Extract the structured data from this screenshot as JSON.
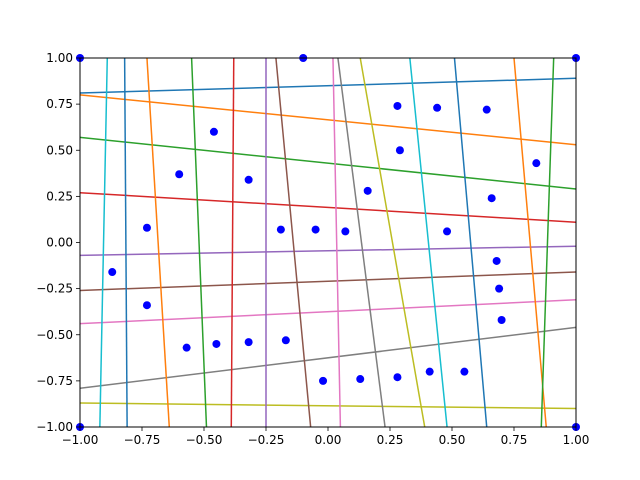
{
  "chart_data": {
    "type": "line",
    "title": "",
    "xlabel": "",
    "ylabel": "",
    "xlim": [
      -1.0,
      1.0
    ],
    "ylim": [
      -1.0,
      1.0
    ],
    "grid": false,
    "legend": "none",
    "x_ticks": [
      -1.0,
      -0.75,
      -0.5,
      -0.25,
      0.0,
      0.25,
      0.5,
      0.75,
      1.0
    ],
    "x_tick_labels": [
      "−1.00",
      "−0.75",
      "−0.50",
      "−0.25",
      "0.00",
      "0.25",
      "0.50",
      "0.75",
      "1.00"
    ],
    "y_ticks": [
      -1.0,
      -0.75,
      -0.5,
      -0.25,
      0.0,
      0.25,
      0.5,
      0.75,
      1.0
    ],
    "y_tick_labels": [
      "−1.00",
      "−0.75",
      "−0.50",
      "−0.25",
      "0.00",
      "0.25",
      "0.50",
      "0.75",
      "1.00"
    ],
    "series": [
      {
        "color": "#1f77b4",
        "points": [
          [
            -1.0,
            0.81
          ],
          [
            1.0,
            0.89
          ]
        ]
      },
      {
        "color": "#ff7f0e",
        "points": [
          [
            -1.0,
            0.8
          ],
          [
            1.0,
            0.53
          ]
        ]
      },
      {
        "color": "#2ca02c",
        "points": [
          [
            -1.0,
            0.57
          ],
          [
            1.0,
            0.29
          ]
        ]
      },
      {
        "color": "#d62728",
        "points": [
          [
            -1.0,
            0.27
          ],
          [
            1.0,
            0.11
          ]
        ]
      },
      {
        "color": "#9467bd",
        "points": [
          [
            -1.0,
            -0.07
          ],
          [
            1.0,
            -0.02
          ]
        ]
      },
      {
        "color": "#8c564b",
        "points": [
          [
            -1.0,
            -0.26
          ],
          [
            1.0,
            -0.16
          ]
        ]
      },
      {
        "color": "#e377c2",
        "points": [
          [
            -1.0,
            -0.44
          ],
          [
            1.0,
            -0.31
          ]
        ]
      },
      {
        "color": "#7f7f7f",
        "points": [
          [
            -1.0,
            -0.79
          ],
          [
            1.0,
            -0.46
          ]
        ]
      },
      {
        "color": "#bcbd22",
        "points": [
          [
            -1.0,
            -0.87
          ],
          [
            1.0,
            -0.9
          ]
        ]
      },
      {
        "color": "#17becf",
        "points": [
          [
            -0.89,
            1.0
          ],
          [
            -0.92,
            -1.0
          ]
        ]
      },
      {
        "color": "#1f77b4",
        "points": [
          [
            -0.82,
            1.0
          ],
          [
            -0.81,
            -1.0
          ]
        ]
      },
      {
        "color": "#ff7f0e",
        "points": [
          [
            -0.73,
            1.0
          ],
          [
            -0.64,
            -1.0
          ]
        ]
      },
      {
        "color": "#2ca02c",
        "points": [
          [
            -0.55,
            1.0
          ],
          [
            -0.49,
            -1.0
          ]
        ]
      },
      {
        "color": "#d62728",
        "points": [
          [
            -0.38,
            1.0
          ],
          [
            -0.39,
            -1.0
          ]
        ]
      },
      {
        "color": "#9467bd",
        "points": [
          [
            -0.25,
            1.0
          ],
          [
            -0.25,
            -1.0
          ]
        ]
      },
      {
        "color": "#8c564b",
        "points": [
          [
            -0.21,
            1.0
          ],
          [
            -0.07,
            -1.0
          ]
        ]
      },
      {
        "color": "#e377c2",
        "points": [
          [
            0.02,
            1.0
          ],
          [
            0.05,
            -1.0
          ]
        ]
      },
      {
        "color": "#7f7f7f",
        "points": [
          [
            0.04,
            1.0
          ],
          [
            0.23,
            -1.0
          ]
        ]
      },
      {
        "color": "#bcbd22",
        "points": [
          [
            0.13,
            1.0
          ],
          [
            0.39,
            -1.0
          ]
        ]
      },
      {
        "color": "#17becf",
        "points": [
          [
            0.33,
            1.0
          ],
          [
            0.48,
            -1.0
          ]
        ]
      },
      {
        "color": "#1f77b4",
        "points": [
          [
            0.51,
            1.0
          ],
          [
            0.64,
            -1.0
          ]
        ]
      },
      {
        "color": "#ff7f0e",
        "points": [
          [
            0.75,
            1.0
          ],
          [
            0.88,
            -1.0
          ]
        ]
      },
      {
        "color": "#2ca02c",
        "points": [
          [
            0.91,
            1.0
          ],
          [
            0.86,
            -1.0
          ]
        ]
      }
    ],
    "scatter": {
      "color": "#0000ff",
      "points": [
        [
          -1.0,
          1.0
        ],
        [
          -0.1,
          1.0
        ],
        [
          1.0,
          1.0
        ],
        [
          0.28,
          0.74
        ],
        [
          0.44,
          0.73
        ],
        [
          0.64,
          0.72
        ],
        [
          -0.46,
          0.6
        ],
        [
          0.29,
          0.5
        ],
        [
          0.84,
          0.43
        ],
        [
          -0.6,
          0.37
        ],
        [
          -0.32,
          0.34
        ],
        [
          0.16,
          0.28
        ],
        [
          0.66,
          0.24
        ],
        [
          -0.73,
          0.08
        ],
        [
          -0.19,
          0.07
        ],
        [
          -0.05,
          0.07
        ],
        [
          0.07,
          0.06
        ],
        [
          0.48,
          0.06
        ],
        [
          -0.87,
          -0.16
        ],
        [
          0.68,
          -0.1
        ],
        [
          0.69,
          -0.25
        ],
        [
          -0.73,
          -0.34
        ],
        [
          0.7,
          -0.42
        ],
        [
          -0.57,
          -0.57
        ],
        [
          -0.45,
          -0.55
        ],
        [
          -0.32,
          -0.54
        ],
        [
          -0.17,
          -0.53
        ],
        [
          -0.02,
          -0.75
        ],
        [
          0.13,
          -0.74
        ],
        [
          0.28,
          -0.73
        ],
        [
          0.41,
          -0.7
        ],
        [
          0.55,
          -0.7
        ],
        [
          -1.0,
          -1.0
        ],
        [
          1.0,
          -1.0
        ]
      ]
    }
  }
}
